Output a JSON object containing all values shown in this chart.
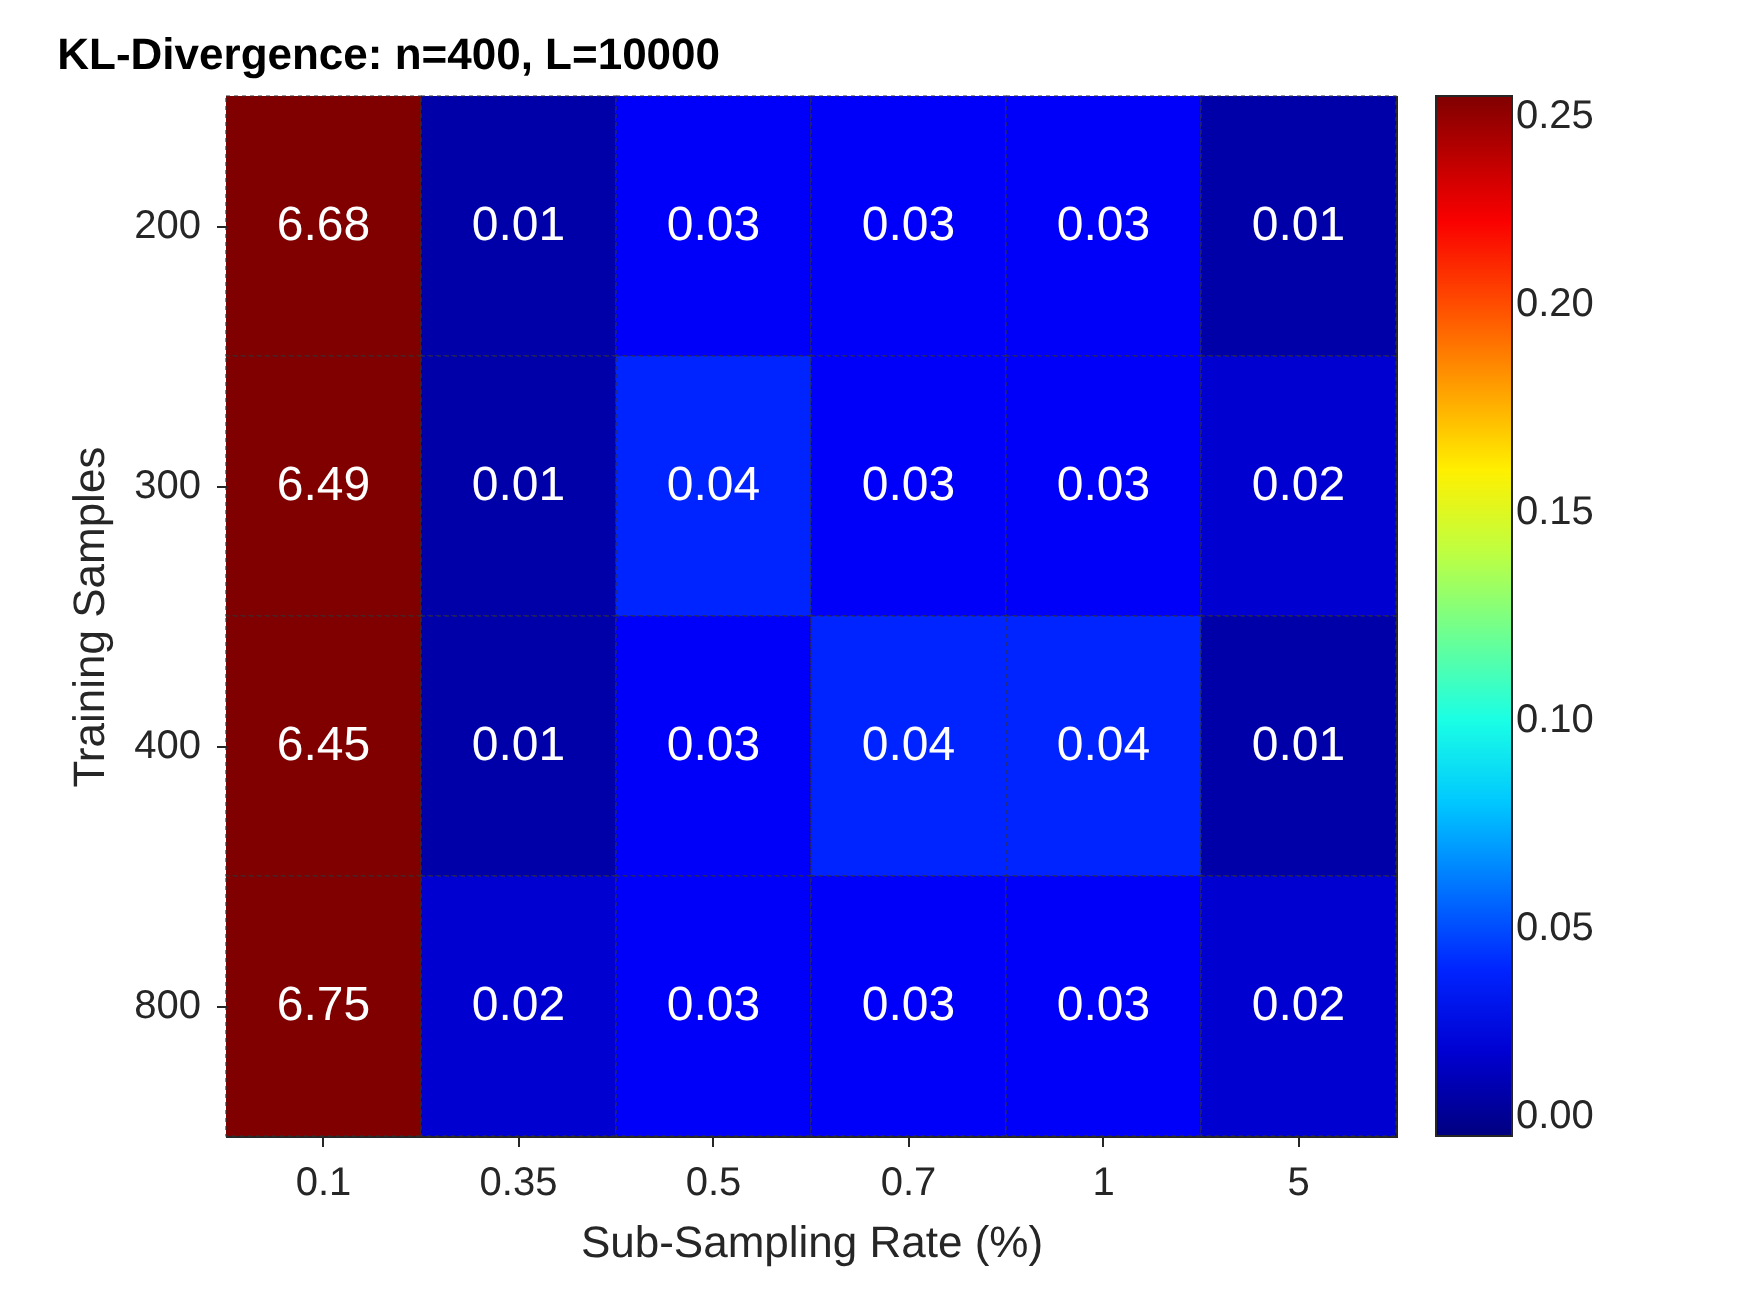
{
  "chart_data": {
    "type": "heatmap",
    "title": "KL-Divergence: n=400, L=10000",
    "xlabel": "Sub-Sampling Rate (%)",
    "ylabel": "Training Samples",
    "categories": [
      "0.1",
      "0.35",
      "0.5",
      "0.7",
      "1",
      "5"
    ],
    "y_categories": [
      "200",
      "300",
      "400",
      "800"
    ],
    "cells": [
      [
        6.68,
        0.01,
        0.03,
        0.03,
        0.03,
        0.01
      ],
      [
        6.49,
        0.01,
        0.04,
        0.03,
        0.03,
        0.02
      ],
      [
        6.45,
        0.01,
        0.03,
        0.04,
        0.04,
        0.01
      ],
      [
        6.75,
        0.02,
        0.03,
        0.03,
        0.03,
        0.02
      ]
    ],
    "data_labels": true,
    "clim": [
      0,
      0.25
    ],
    "cticks": [
      {
        "value": 0,
        "label": "0.00"
      },
      {
        "value": 0.05,
        "label": "0.05"
      },
      {
        "value": 0.1,
        "label": "0.10"
      },
      {
        "value": 0.15,
        "label": "0.15"
      },
      {
        "value": 0.2,
        "label": "0.20"
      },
      {
        "value": 0.25,
        "label": "0.25"
      }
    ]
  }
}
